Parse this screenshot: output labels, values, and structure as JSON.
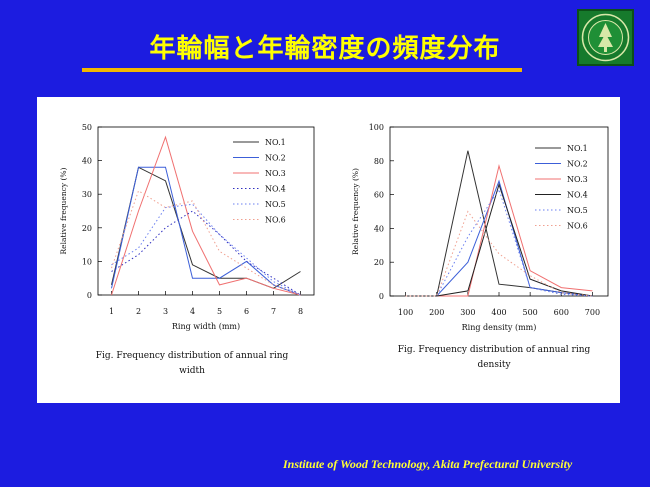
{
  "slide": {
    "title": "年輪幅と年輪密度の頻度分布",
    "footer": "Institute of Wood Technology, Akita Prefectural University",
    "colors": {
      "background": "#1c1ce0",
      "title": "#ffff00",
      "title_rule": "#f2b800",
      "footer": "#ffff33",
      "logo": "#167a2c"
    }
  },
  "chart_data": [
    {
      "type": "line",
      "caption": "Fig. Frequency distribution of annual ring width",
      "xlabel": "Ring width (mm)",
      "ylabel": "Relative frequency (%)",
      "xlim": [
        0.5,
        8.5
      ],
      "ylim": [
        0,
        50
      ],
      "xticks": [
        1,
        2,
        3,
        4,
        5,
        6,
        7,
        8
      ],
      "yticks": [
        0,
        10,
        20,
        30,
        40,
        50
      ],
      "grid": false,
      "legend_position": "top-right",
      "x": [
        1,
        2,
        3,
        4,
        5,
        6,
        7,
        8
      ],
      "series": [
        {
          "name": "NO.1",
          "color": "#333333",
          "dash": "solid",
          "values": [
            3,
            38,
            34,
            9,
            5,
            5,
            2,
            7
          ]
        },
        {
          "name": "NO.2",
          "color": "#3c5fd8",
          "dash": "solid",
          "values": [
            2,
            38,
            38,
            5,
            5,
            10,
            3,
            0
          ]
        },
        {
          "name": "NO.3",
          "color": "#f07070",
          "dash": "solid",
          "values": [
            0,
            25,
            47,
            19,
            3,
            5,
            2,
            0
          ]
        },
        {
          "name": "NO.4",
          "color": "#3030c0",
          "dash": "dotted",
          "values": [
            7,
            12,
            20,
            25,
            18,
            10,
            5,
            0
          ]
        },
        {
          "name": "NO.5",
          "color": "#6a7ff0",
          "dash": "dotted",
          "values": [
            9,
            14,
            26,
            27,
            18,
            11,
            4,
            0
          ]
        },
        {
          "name": "NO.6",
          "color": "#f0a090",
          "dash": "dotted",
          "values": [
            8,
            31,
            26,
            28,
            13,
            8,
            3,
            0
          ]
        }
      ]
    },
    {
      "type": "line",
      "caption": "Fig. Frequency distribution of annual ring density",
      "xlabel": "Ring density (mm)",
      "ylabel": "Relative frequency (%)",
      "xlim": [
        50,
        750
      ],
      "ylim": [
        0,
        100
      ],
      "xticks": [
        100,
        200,
        300,
        400,
        500,
        600,
        700
      ],
      "yticks": [
        0,
        20,
        40,
        60,
        80,
        100
      ],
      "grid": false,
      "legend_position": "top-right",
      "x": [
        100,
        200,
        300,
        400,
        500,
        600,
        700
      ],
      "series": [
        {
          "name": "NO.1",
          "color": "#333333",
          "dash": "solid",
          "values": [
            0,
            0,
            86,
            7,
            5,
            2,
            0
          ]
        },
        {
          "name": "NO.2",
          "color": "#3c5fd8",
          "dash": "solid",
          "values": [
            0,
            0,
            20,
            68,
            5,
            2,
            0
          ]
        },
        {
          "name": "NO.3",
          "color": "#f07070",
          "dash": "solid",
          "values": [
            0,
            0,
            0,
            77,
            15,
            5,
            3
          ]
        },
        {
          "name": "NO.4",
          "color": "#222222",
          "dash": "solid",
          "values": [
            0,
            0,
            3,
            66,
            10,
            3,
            0
          ]
        },
        {
          "name": "NO.5",
          "color": "#6a7ff0",
          "dash": "dotted",
          "values": [
            0,
            0,
            35,
            63,
            5,
            1,
            0
          ]
        },
        {
          "name": "NO.6",
          "color": "#f0a090",
          "dash": "dotted",
          "values": [
            0,
            0,
            50,
            25,
            12,
            2,
            0
          ]
        }
      ]
    }
  ]
}
